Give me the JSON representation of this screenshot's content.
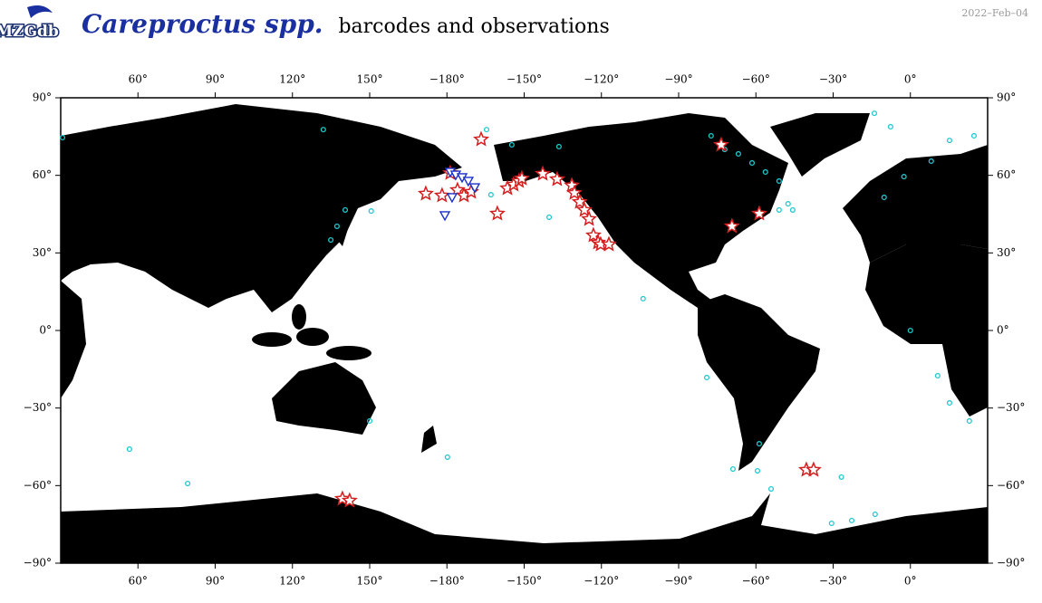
{
  "header": {
    "logo": "MZGdb",
    "title_taxon": "Careproctus spp.",
    "title_rest": "barcodes and observations",
    "date": "2022–Feb–04"
  },
  "chart_data": {
    "type": "map",
    "xlim": [
      30,
      390
    ],
    "ylim": [
      -90,
      90
    ],
    "xticks": [
      {
        "value": 60,
        "label": "60°"
      },
      {
        "value": 90,
        "label": "90°"
      },
      {
        "value": 120,
        "label": "120°"
      },
      {
        "value": 150,
        "label": "150°"
      },
      {
        "value": 180,
        "label": "−180°"
      },
      {
        "value": 210,
        "label": "−150°"
      },
      {
        "value": 240,
        "label": "−120°"
      },
      {
        "value": 270,
        "label": "−90°"
      },
      {
        "value": 300,
        "label": "−60°"
      },
      {
        "value": 330,
        "label": "−30°"
      },
      {
        "value": 360,
        "label": "0°"
      }
    ],
    "yticks": [
      {
        "value": 90,
        "label": "90°"
      },
      {
        "value": 60,
        "label": "60°"
      },
      {
        "value": 30,
        "label": "30°"
      },
      {
        "value": 0,
        "label": "0°"
      },
      {
        "value": -30,
        "label": "−30°"
      },
      {
        "value": -60,
        "label": "−60°"
      },
      {
        "value": -90,
        "label": "−90°"
      }
    ],
    "series": [
      {
        "marker": "circle",
        "color": "#20c8d0",
        "x": [
          30.7,
          132.0,
          195.4,
          205.2,
          223.5,
          282.6,
          287.9,
          293.2,
          298.5,
          303.7,
          309.0,
          312.5,
          309.0,
          314.3,
          346.0,
          352.3,
          375.2,
          384.7,
          368.1,
          357.5,
          349.8,
          140.5,
          137.3,
          134.9,
          150.6,
          219.7,
          256.2,
          280.9,
          301.3,
          291.1,
          300.6,
          305.9,
          329.4,
          337.2,
          346.3,
          333.2,
          360.0,
          370.6,
          375.2,
          382.9,
          56.7,
          79.3,
          180.2,
          150.0,
          197.1
        ],
        "y": [
          74.6,
          77.7,
          77.7,
          71.8,
          71.1,
          75.3,
          70.0,
          68.3,
          64.8,
          61.3,
          57.8,
          49.0,
          46.6,
          46.6,
          84.0,
          78.8,
          73.5,
          75.3,
          65.5,
          59.5,
          51.5,
          46.6,
          40.3,
          35.0,
          46.2,
          43.8,
          12.3,
          -18.2,
          -43.8,
          -53.6,
          -54.3,
          -61.3,
          -74.6,
          -73.5,
          -71.1,
          -56.7,
          0.0,
          -17.5,
          -28.0,
          -35.0,
          -45.9,
          -59.2,
          -49.0,
          -35.0,
          52.5
        ]
      },
      {
        "marker": "star",
        "color": "#d42020",
        "x": [
          171.8,
          178.1,
          181.3,
          184.1,
          186.6,
          189.4,
          193.3,
          199.6,
          203.5,
          205.9,
          208.0,
          209.1,
          217.2,
          222.8,
          228.5,
          229.5,
          231.6,
          233.4,
          235.2,
          236.9,
          238.7,
          239.7,
          242.9,
          286.5,
          290.7,
          301.3,
          139.4,
          142.2,
          319.6,
          322.4
        ],
        "y": [
          52.9,
          52.2,
          60.9,
          54.3,
          52.2,
          53.6,
          73.9,
          45.2,
          55.0,
          56.4,
          57.8,
          58.8,
          60.6,
          58.5,
          56.1,
          53.2,
          49.7,
          46.6,
          43.1,
          36.8,
          34.0,
          33.3,
          33.3,
          71.8,
          40.3,
          45.2,
          -65.1,
          -65.8,
          -53.9,
          -53.9
        ]
      },
      {
        "marker": "triangle",
        "color": "#1a2fc8",
        "x": [
          179.2,
          181.3,
          183.4,
          185.9,
          188.3,
          190.8,
          182.0
        ],
        "y": [
          44.5,
          61.3,
          60.2,
          59.2,
          57.8,
          55.3,
          51.5
        ]
      }
    ]
  }
}
